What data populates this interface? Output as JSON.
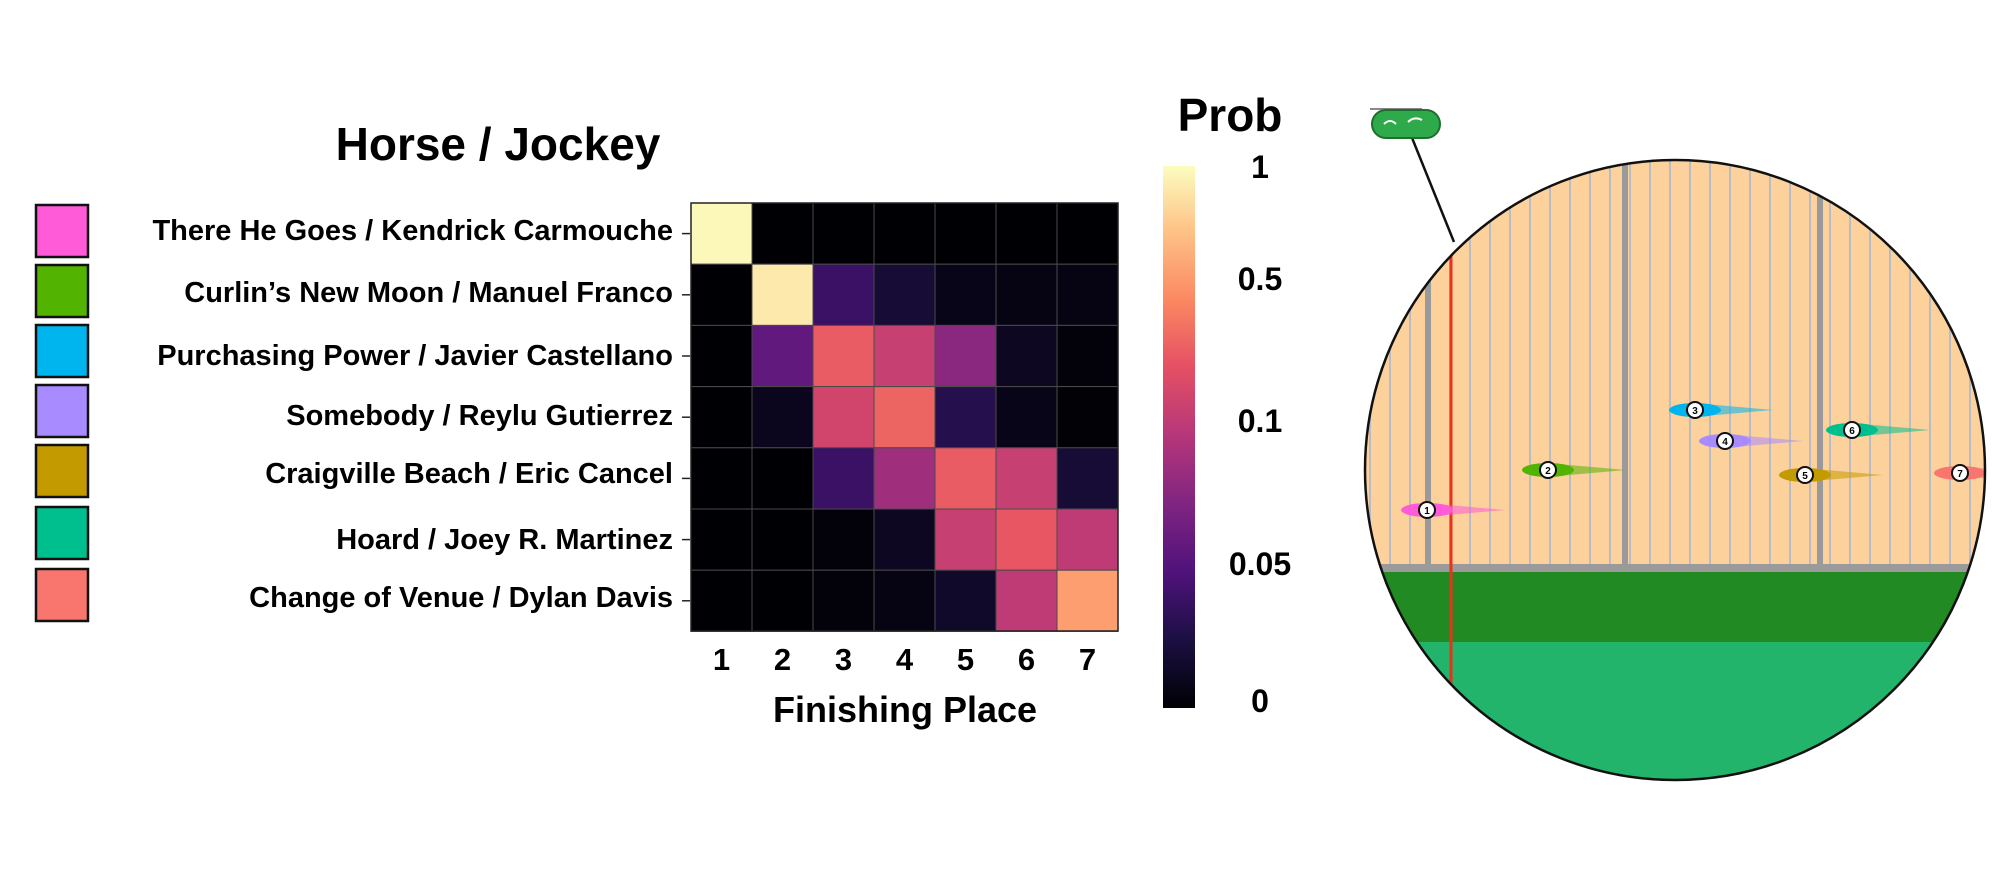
{
  "chart_data": {
    "type": "heatmap",
    "title": "Horse / Jockey",
    "xlabel": "Finishing Place",
    "x_categories": [
      "1",
      "2",
      "3",
      "4",
      "5",
      "6",
      "7"
    ],
    "rows": [
      {
        "label": "There He Goes / Kendrick Carmouche",
        "color": "#ff5ad8",
        "values": [
          0.98,
          0.0,
          0.0,
          0.0,
          0.0,
          0.0,
          0.0
        ]
      },
      {
        "label": "Curlin’s New Moon / Manuel Franco",
        "color": "#52b300",
        "values": [
          0.0,
          0.92,
          0.04,
          0.02,
          0.008,
          0.006,
          0.006
        ]
      },
      {
        "label": "Purchasing Power / Javier Castellano",
        "color": "#00b5ee",
        "values": [
          0.0,
          0.06,
          0.35,
          0.18,
          0.08,
          0.012,
          0.003
        ]
      },
      {
        "label": "Somebody / Reylu Gutierrez",
        "color": "#a78bff",
        "values": [
          0.0,
          0.01,
          0.22,
          0.38,
          0.03,
          0.008,
          0.001
        ]
      },
      {
        "label": "Craigville Beach / Eric Cancel",
        "color": "#c39a00",
        "values": [
          0.0,
          0.0,
          0.04,
          0.09,
          0.35,
          0.18,
          0.02
        ]
      },
      {
        "label": "Hoard / Joey R. Martinez",
        "color": "#00bf8f",
        "values": [
          0.0,
          0.0,
          0.003,
          0.012,
          0.18,
          0.33,
          0.14
        ]
      },
      {
        "label": "Change of Venue / Dylan Davis",
        "color": "#f8766d",
        "values": [
          0.0,
          0.0,
          0.003,
          0.006,
          0.015,
          0.14,
          0.6
        ]
      }
    ],
    "colorbar": {
      "title": "Prob",
      "ticks": [
        "1",
        "0.5",
        "0.1",
        "0.05",
        "0"
      ],
      "colormap": "magma"
    },
    "grid": true
  },
  "race": {
    "runners": [
      {
        "number": "1",
        "color": "#ff5ad8"
      },
      {
        "number": "2",
        "color": "#52b300"
      },
      {
        "number": "3",
        "color": "#00b5ee"
      },
      {
        "number": "4",
        "color": "#a78bff"
      },
      {
        "number": "5",
        "color": "#c39a00"
      },
      {
        "number": "6",
        "color": "#00bf8f"
      },
      {
        "number": "7",
        "color": "#f8766d"
      }
    ],
    "colors": {
      "sky": "#fcd19c",
      "rail": "#9a9a9a",
      "grass_dark": "#228a22",
      "grass_light": "#22b46a",
      "finish_line": "#e8331c"
    }
  }
}
